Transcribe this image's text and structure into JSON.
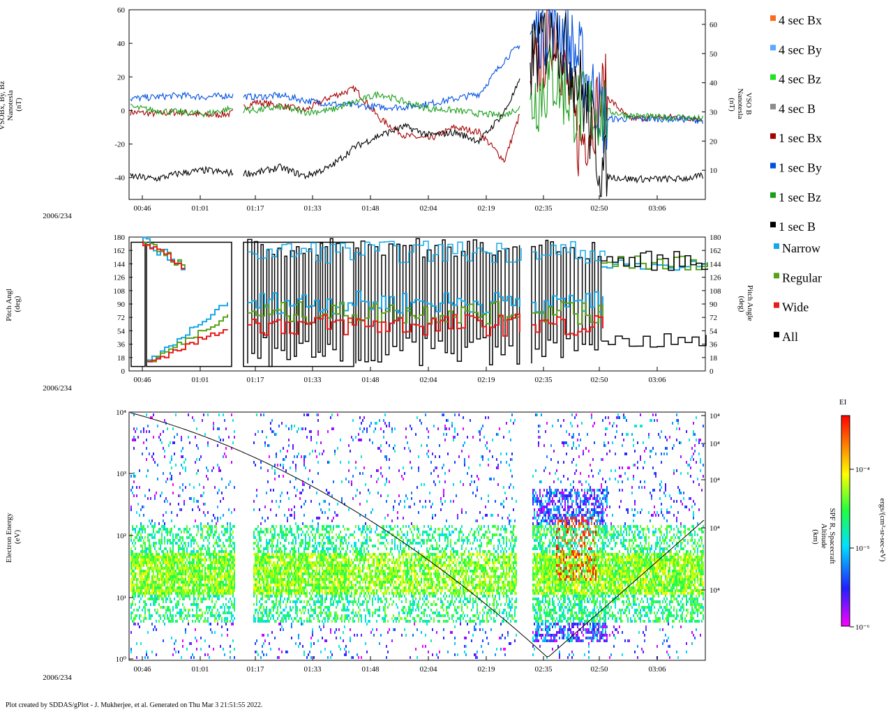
{
  "footer": "Plot created by SDDAS/gPlot - J. Mukherjee, et al.  Generated on Thu Mar 3 21:51:55 2022.",
  "date_label": "2006/234",
  "time_ticks": [
    "00:46",
    "01:01",
    "01:17",
    "01:33",
    "01:48",
    "02:04",
    "02:19",
    "02:35",
    "02:50",
    "03:06"
  ],
  "chart_data": [
    {
      "type": "line",
      "id": "magnetic-field",
      "ylabel": [
        "VSOBx, By, Bz",
        "Nanotesla",
        "(nT)"
      ],
      "y2label": [
        "VSO B",
        "Nanotesla",
        "(nT)"
      ],
      "ylim": [
        -53,
        60
      ],
      "y2lim": [
        0,
        65
      ],
      "yticks": [
        "60",
        "40",
        "20",
        "0",
        "-20",
        "-40"
      ],
      "y2ticks": [
        "60",
        "50",
        "40",
        "30",
        "20",
        "10"
      ],
      "series": [
        {
          "name": "1 sec Bx",
          "color": "#a50000",
          "values": [
            -1,
            -2,
            -1,
            -3,
            -2,
            5,
            3,
            0,
            8,
            13,
            -5,
            -15,
            -17,
            -10,
            -13,
            -30,
            15,
            50,
            -20,
            10,
            -5,
            -4,
            -4,
            -5
          ]
        },
        {
          "name": "1 sec By",
          "color": "#0050e0",
          "values": [
            7,
            8,
            9,
            8,
            9,
            8,
            9,
            6,
            4,
            3,
            2,
            2,
            4,
            7,
            10,
            30,
            45,
            55,
            30,
            -5,
            -5,
            -5,
            -5,
            -6
          ]
        },
        {
          "name": "1 sec Bz",
          "color": "#1a9e1a",
          "values": [
            2,
            0,
            -1,
            -2,
            1,
            0,
            2,
            -1,
            0,
            5,
            10,
            5,
            1,
            0,
            -2,
            -3,
            5,
            20,
            0,
            0,
            -3,
            -4,
            -4,
            -5
          ]
        },
        {
          "name": "1 sec B",
          "color": "#000000",
          "values": [
            8,
            7,
            9,
            10,
            9,
            9,
            11,
            8,
            11,
            18,
            22,
            25,
            22,
            23,
            20,
            30,
            47,
            60,
            40,
            8,
            7,
            7,
            7,
            8
          ]
        }
      ],
      "legend": [
        {
          "label": "4 sec Bx",
          "color": "#ff6a1a"
        },
        {
          "label": "4 sec By",
          "color": "#5aa8ff"
        },
        {
          "label": "4 sec Bz",
          "color": "#22e022"
        },
        {
          "label": "4 sec B",
          "color": "#8c8c8c"
        },
        {
          "label": "1 sec Bx",
          "color": "#a50000"
        },
        {
          "label": "1 sec By",
          "color": "#0050e0"
        },
        {
          "label": "1 sec Bz",
          "color": "#1a9e1a"
        },
        {
          "label": "1 sec B",
          "color": "#000000"
        }
      ]
    },
    {
      "type": "line",
      "id": "pitch-angle",
      "ylabel": [
        "Pitch Angl",
        "(deg)"
      ],
      "y2label": [
        "Pitch Angle",
        "(deg)"
      ],
      "ylim": [
        0,
        180
      ],
      "yticks": [
        "180",
        "162",
        "144",
        "126",
        "108",
        "90",
        "72",
        "54",
        "36",
        "18",
        "0"
      ],
      "legend": [
        {
          "label": "Narrow",
          "color": "#14a8e8"
        },
        {
          "label": "Regular",
          "color": "#5aa01a"
        },
        {
          "label": "Wide",
          "color": "#e81a1a"
        },
        {
          "label": "All",
          "color": "#000000"
        }
      ]
    },
    {
      "type": "heatmap",
      "id": "electron-spectrogram",
      "ylabel": [
        "Electron Energy",
        "(eV)"
      ],
      "y2label": [
        "SPF R, Spacecraft",
        "Altitude",
        "(km)"
      ],
      "yticks": [
        "10⁴",
        "10³",
        "10²",
        "10¹",
        "10⁰"
      ],
      "y2ticks": [
        "10⁴",
        "10⁴",
        "10⁴",
        "10⁴",
        "10⁴"
      ],
      "colorbar": {
        "title": "EI",
        "label": "ergs/(cm²-sr-sec-eV)",
        "ticks": [
          "10⁻⁴",
          "10⁻⁵",
          "10⁻⁶"
        ]
      }
    }
  ]
}
